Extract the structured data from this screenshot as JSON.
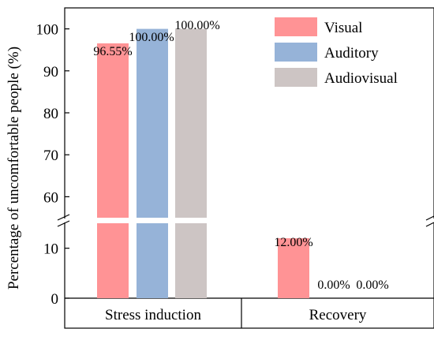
{
  "chart_data": {
    "type": "bar",
    "axis_break": [
      55,
      15
    ],
    "ylabel": "Percentage of uncomfortable people (%)",
    "xlabel": "",
    "ylim_lower": [
      0,
      15
    ],
    "ylim_upper": [
      55,
      105
    ],
    "yticks_lower": [
      "0",
      "10"
    ],
    "yticks_upper": [
      "60",
      "70",
      "80",
      "90",
      "100"
    ],
    "categories": [
      "Stress induction",
      "Recovery"
    ],
    "series": [
      {
        "name": "Visual",
        "color": "#ff9395",
        "values": [
          96.55,
          12.0
        ],
        "labels": [
          "96.55%",
          "12.00%"
        ]
      },
      {
        "name": "Auditory",
        "color": "#96b3d8",
        "values": [
          100.0,
          0.0
        ],
        "labels": [
          "100.00%",
          "0.00%"
        ]
      },
      {
        "name": "Audiovisual",
        "color": "#cdc5c4",
        "values": [
          100.0,
          0.0
        ],
        "labels": [
          "100.00%",
          "0.00%"
        ]
      }
    ],
    "legend_position": "top-right",
    "grid": false
  }
}
